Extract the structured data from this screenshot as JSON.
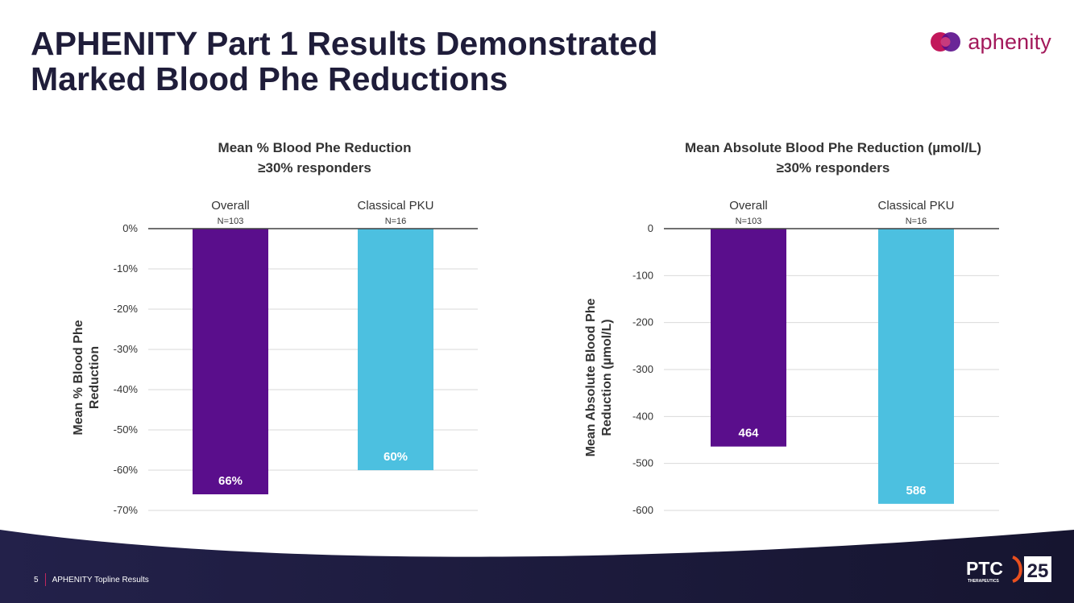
{
  "header": {
    "title_line1": "APHENITY Part 1 Results Demonstrated",
    "title_line2": "Marked Blood Phe Reductions",
    "brand": "aphenity"
  },
  "chart_data": [
    {
      "type": "bar",
      "title": [
        "Mean % Blood Phe Reduction",
        "≥30% responders"
      ],
      "categories": [
        "Overall",
        "Classical PKU"
      ],
      "sublabels": [
        "N=103",
        "N=16"
      ],
      "values": [
        -66,
        -60
      ],
      "data_labels": [
        "66%",
        "60%"
      ],
      "ylabel": [
        "Mean % Blood Phe",
        "Reduction"
      ],
      "ylim": [
        -70,
        0
      ],
      "yticks": [
        0,
        -10,
        -20,
        -30,
        -40,
        -50,
        -60,
        -70
      ],
      "ytick_labels": [
        "0%",
        "-10%",
        "-20%",
        "-30%",
        "-40%",
        "-50%",
        "-60%",
        "-70%"
      ],
      "colors": [
        "#5a0e8c",
        "#4cc0e0"
      ],
      "grid": true
    },
    {
      "type": "bar",
      "title": [
        "Mean Absolute Blood Phe Reduction (µmol/L)",
        "≥30% responders"
      ],
      "categories": [
        "Overall",
        "Classical PKU"
      ],
      "sublabels": [
        "N=103",
        "N=16"
      ],
      "values": [
        -464,
        -586
      ],
      "data_labels": [
        "464",
        "586"
      ],
      "ylabel": [
        "Mean Absolute Blood Phe",
        "Reduction (µmol/L)"
      ],
      "ylim": [
        -600,
        0
      ],
      "yticks": [
        0,
        -100,
        -200,
        -300,
        -400,
        -500,
        -600
      ],
      "ytick_labels": [
        "0",
        "-100",
        "-200",
        "-300",
        "-400",
        "-500",
        "-600"
      ],
      "colors": [
        "#5a0e8c",
        "#4cc0e0"
      ],
      "grid": true
    }
  ],
  "footer": {
    "page_number": "5",
    "text": "APHENITY Topline Results",
    "logo_text": "PTC",
    "logo_sub": "THERAPEUTICS",
    "anniversary": "25"
  },
  "colors": {
    "title": "#1f1d3a",
    "brand": "#a3195b",
    "footer_bg": "#1f1d3a"
  }
}
